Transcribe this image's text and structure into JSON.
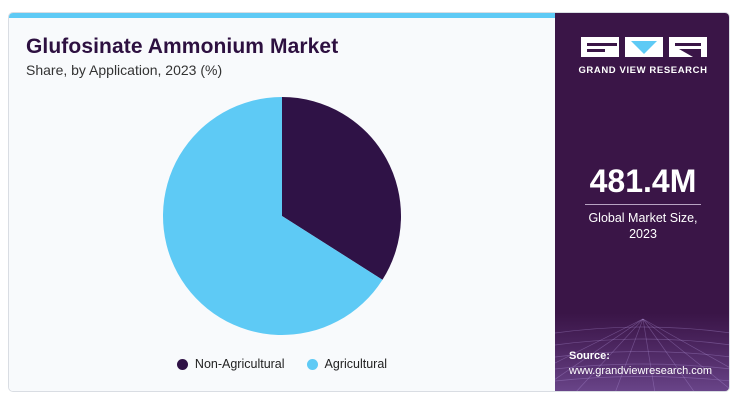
{
  "chart_data": {
    "type": "pie",
    "title": "Glufosinate Ammonium Market",
    "subtitle": "Share, by Application, 2023 (%)",
    "categories": [
      "Non-Agricultural",
      "Agricultural"
    ],
    "values": [
      34,
      66
    ],
    "colors": [
      "#2f1246",
      "#5ecaf5"
    ],
    "legend_position": "bottom"
  },
  "sidebar": {
    "brand": "GRAND VIEW RESEARCH",
    "stat_value": "481.4M",
    "stat_label": "Global Market Size, 2023",
    "source_label": "Source:",
    "source_url": "www.grandviewresearch.com"
  },
  "colors": {
    "accent": "#5ecaf5",
    "panel": "#3a1547",
    "title": "#2d1040"
  }
}
